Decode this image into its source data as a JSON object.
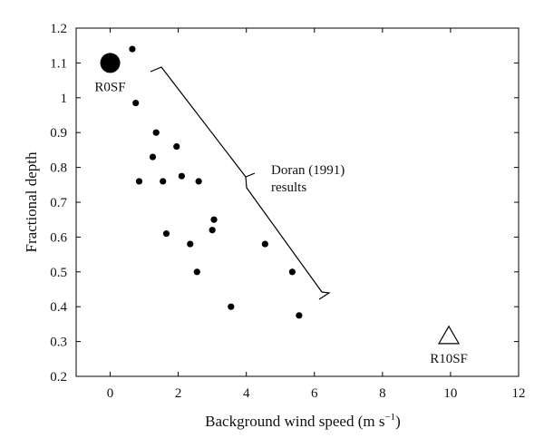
{
  "chart_data": {
    "type": "scatter",
    "xlabel": "Background wind speed (m s",
    "xlabel_exponent": "−1",
    "xlabel_close": ")",
    "ylabel": "Fractional depth",
    "xlim": [
      -1,
      12
    ],
    "ylim": [
      0.2,
      1.2
    ],
    "xticks": [
      0,
      2,
      4,
      6,
      8,
      10,
      12
    ],
    "yticks": [
      0.2,
      0.3,
      0.4,
      0.5,
      0.6,
      0.7,
      0.8,
      0.9,
      1,
      1.1,
      1.2
    ],
    "grid": false,
    "series": [
      {
        "marker": "dot",
        "points": [
          {
            "x": 0.65,
            "y": 1.14
          },
          {
            "x": 0.75,
            "y": 0.985
          },
          {
            "x": 1.35,
            "y": 0.9
          },
          {
            "x": 1.95,
            "y": 0.86
          },
          {
            "x": 1.25,
            "y": 0.83
          },
          {
            "x": 2.1,
            "y": 0.775
          },
          {
            "x": 0.85,
            "y": 0.76
          },
          {
            "x": 1.55,
            "y": 0.76
          },
          {
            "x": 2.6,
            "y": 0.76
          },
          {
            "x": 3.05,
            "y": 0.65
          },
          {
            "x": 3.0,
            "y": 0.62
          },
          {
            "x": 1.65,
            "y": 0.61
          },
          {
            "x": 2.35,
            "y": 0.58
          },
          {
            "x": 4.55,
            "y": 0.58
          },
          {
            "x": 2.55,
            "y": 0.5
          },
          {
            "x": 5.35,
            "y": 0.5
          },
          {
            "x": 3.55,
            "y": 0.4
          },
          {
            "x": 5.55,
            "y": 0.375
          }
        ]
      },
      {
        "name": "R0SF",
        "marker": "large-dot",
        "points": [
          {
            "x": 0.0,
            "y": 1.1
          }
        ]
      },
      {
        "name": "R10SF",
        "marker": "open-triangle",
        "points": [
          {
            "x": 9.95,
            "y": 0.315
          }
        ]
      }
    ],
    "annotations": [
      {
        "text_lines": [
          "Doran (1991)",
          "results"
        ],
        "type": "brace"
      }
    ],
    "colors": {
      "marker": "#000000",
      "axis": "#000000",
      "background": "#ffffff"
    }
  }
}
